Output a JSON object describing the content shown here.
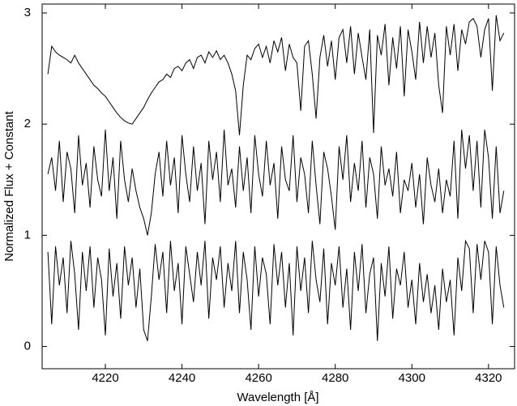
{
  "chart_data": {
    "type": "line",
    "xlabel": "Wavelength [Å]",
    "ylabel": "Normalized Flux + Constant",
    "xlim": [
      4203.5,
      4326.8
    ],
    "ylim": [
      -0.2,
      3.08
    ],
    "xticks": [
      4220,
      4240,
      4260,
      4280,
      4300,
      4320
    ],
    "yticks": [
      0,
      1,
      2,
      3
    ],
    "x": [
      4205,
      4206,
      4207,
      4208,
      4209,
      4210,
      4211,
      4212,
      4213,
      4214,
      4215,
      4216,
      4217,
      4218,
      4219,
      4220,
      4221,
      4222,
      4223,
      4224,
      4225,
      4226,
      4227,
      4228,
      4229,
      4230,
      4231,
      4232,
      4233,
      4234,
      4235,
      4236,
      4237,
      4238,
      4239,
      4240,
      4241,
      4242,
      4243,
      4244,
      4245,
      4246,
      4247,
      4248,
      4249,
      4250,
      4251,
      4252,
      4253,
      4254,
      4255,
      4256,
      4257,
      4258,
      4259,
      4260,
      4261,
      4262,
      4263,
      4264,
      4265,
      4266,
      4267,
      4268,
      4269,
      4270,
      4271,
      4272,
      4273,
      4274,
      4275,
      4276,
      4277,
      4278,
      4279,
      4280,
      4281,
      4282,
      4283,
      4284,
      4285,
      4286,
      4287,
      4288,
      4289,
      4290,
      4291,
      4292,
      4293,
      4294,
      4295,
      4296,
      4297,
      4298,
      4299,
      4300,
      4301,
      4302,
      4303,
      4304,
      4305,
      4306,
      4307,
      4308,
      4309,
      4310,
      4311,
      4312,
      4313,
      4314,
      4315,
      4316,
      4317,
      4318,
      4319,
      4320,
      4321,
      4322,
      4323,
      4324
    ],
    "series": [
      {
        "color": "#000000",
        "values": [
          2.45,
          2.7,
          2.65,
          2.62,
          2.6,
          2.58,
          2.55,
          2.62,
          2.55,
          2.5,
          2.45,
          2.4,
          2.35,
          2.32,
          2.28,
          2.25,
          2.2,
          2.15,
          2.1,
          2.06,
          2.03,
          2.01,
          2.0,
          2.05,
          2.1,
          2.15,
          2.22,
          2.28,
          2.33,
          2.38,
          2.4,
          2.45,
          2.42,
          2.5,
          2.52,
          2.48,
          2.55,
          2.58,
          2.5,
          2.6,
          2.62,
          2.55,
          2.65,
          2.6,
          2.66,
          2.58,
          2.62,
          2.55,
          2.45,
          2.3,
          1.9,
          2.35,
          2.62,
          2.58,
          2.68,
          2.72,
          2.6,
          2.7,
          2.55,
          2.75,
          2.65,
          2.78,
          2.48,
          2.72,
          2.6,
          2.55,
          2.12,
          2.7,
          2.75,
          2.45,
          2.05,
          2.6,
          2.8,
          2.52,
          2.75,
          2.4,
          2.78,
          2.85,
          2.55,
          2.88,
          2.45,
          2.82,
          2.6,
          2.4,
          2.85,
          1.92,
          2.8,
          2.62,
          2.9,
          2.35,
          2.78,
          2.5,
          2.88,
          2.25,
          2.85,
          2.65,
          2.4,
          2.92,
          2.55,
          2.88,
          2.6,
          2.82,
          2.35,
          2.1,
          2.88,
          2.62,
          2.9,
          2.48,
          2.85,
          2.72,
          2.92,
          2.95,
          2.88,
          2.6,
          2.85,
          2.95,
          2.3,
          2.98,
          2.75,
          2.82
        ]
      },
      {
        "color": "#000000",
        "values": [
          1.55,
          1.7,
          1.4,
          1.85,
          1.3,
          1.75,
          1.6,
          1.2,
          1.9,
          1.45,
          1.65,
          1.25,
          1.8,
          1.5,
          1.35,
          1.95,
          1.4,
          1.7,
          1.15,
          1.85,
          1.5,
          1.3,
          1.6,
          1.4,
          1.25,
          1.15,
          1.0,
          1.2,
          1.55,
          1.75,
          1.35,
          1.85,
          1.45,
          1.7,
          1.2,
          1.9,
          1.55,
          1.3,
          1.8,
          1.4,
          1.65,
          1.1,
          1.85,
          1.5,
          1.75,
          1.3,
          1.95,
          1.45,
          1.6,
          1.25,
          1.8,
          1.4,
          1.7,
          1.2,
          1.9,
          1.55,
          1.35,
          1.85,
          1.45,
          1.65,
          1.15,
          1.8,
          1.5,
          1.4,
          1.9,
          1.3,
          1.7,
          1.55,
          1.2,
          1.85,
          1.45,
          1.1,
          1.75,
          1.6,
          1.35,
          1.05,
          1.8,
          1.5,
          1.9,
          1.3,
          1.65,
          1.4,
          1.85,
          1.25,
          1.7,
          1.55,
          1.15,
          1.8,
          1.45,
          1.6,
          1.35,
          1.75,
          1.2,
          1.5,
          1.4,
          1.65,
          1.25,
          1.55,
          1.1,
          1.7,
          1.45,
          1.3,
          1.6,
          1.2,
          1.5,
          1.35,
          1.85,
          1.15,
          1.95,
          1.6,
          1.9,
          1.4,
          1.85,
          1.25,
          1.95,
          1.7,
          1.15,
          1.8,
          1.2,
          1.4
        ]
      },
      {
        "color": "#000000",
        "values": [
          0.85,
          0.2,
          0.9,
          0.55,
          0.8,
          0.3,
          0.95,
          0.65,
          0.15,
          0.85,
          0.5,
          0.9,
          0.35,
          0.8,
          0.6,
          0.1,
          0.88,
          0.45,
          0.75,
          0.25,
          0.9,
          0.55,
          0.8,
          0.35,
          0.7,
          0.15,
          0.05,
          0.45,
          0.92,
          0.6,
          0.85,
          0.3,
          0.95,
          0.5,
          0.75,
          0.2,
          0.9,
          0.65,
          0.4,
          0.85,
          0.55,
          0.95,
          0.25,
          0.8,
          0.6,
          0.9,
          0.35,
          0.75,
          0.5,
          0.95,
          0.3,
          0.85,
          0.6,
          0.15,
          0.9,
          0.45,
          0.8,
          0.65,
          0.2,
          0.92,
          0.55,
          0.85,
          0.35,
          0.75,
          0.1,
          0.9,
          0.5,
          0.8,
          0.3,
          0.95,
          0.6,
          0.4,
          0.88,
          0.2,
          0.75,
          0.55,
          0.9,
          0.35,
          0.7,
          0.15,
          0.85,
          0.5,
          0.92,
          0.3,
          0.65,
          0.8,
          0.05,
          0.75,
          0.45,
          0.9,
          0.25,
          0.7,
          0.55,
          0.85,
          0.35,
          0.6,
          0.2,
          0.75,
          0.4,
          0.65,
          0.3,
          0.55,
          0.15,
          0.7,
          0.4,
          0.6,
          0.1,
          0.8,
          0.5,
          0.95,
          0.88,
          0.3,
          0.92,
          0.6,
          0.95,
          0.85,
          0.2,
          0.9,
          0.55,
          0.35
        ]
      }
    ]
  }
}
